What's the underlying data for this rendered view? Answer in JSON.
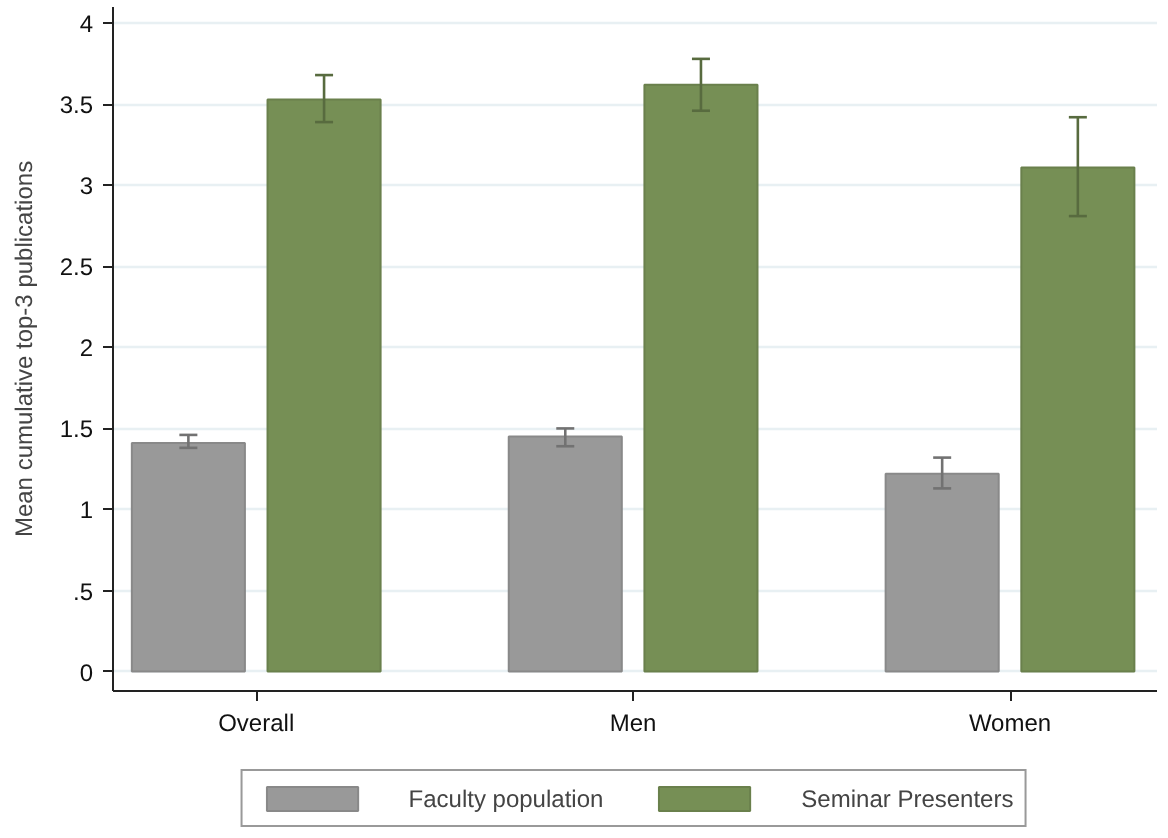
{
  "chart_data": {
    "type": "bar",
    "ylabel": "Mean cumulative top-3 publications",
    "categories": [
      "Overall",
      "Men",
      "Women"
    ],
    "series": [
      {
        "name": "Faculty population",
        "color": "#999999",
        "values": [
          1.41,
          1.45,
          1.22
        ],
        "errors": [
          [
            1.38,
            1.46
          ],
          [
            1.39,
            1.5
          ],
          [
            1.13,
            1.32
          ]
        ]
      },
      {
        "name": "Seminar Presenters",
        "color": "#768f55",
        "values": [
          3.53,
          3.62,
          3.11
        ],
        "errors": [
          [
            3.39,
            3.68
          ],
          [
            3.46,
            3.78
          ],
          [
            2.81,
            3.42
          ]
        ]
      }
    ],
    "ylim": [
      -0.12,
      4.1
    ],
    "yticks": [
      0,
      {
        "value": 0.5,
        "label": ".5"
      },
      1,
      1.5,
      2,
      2.5,
      3,
      3.5,
      4
    ],
    "grid": "y",
    "legend": "bottom"
  }
}
